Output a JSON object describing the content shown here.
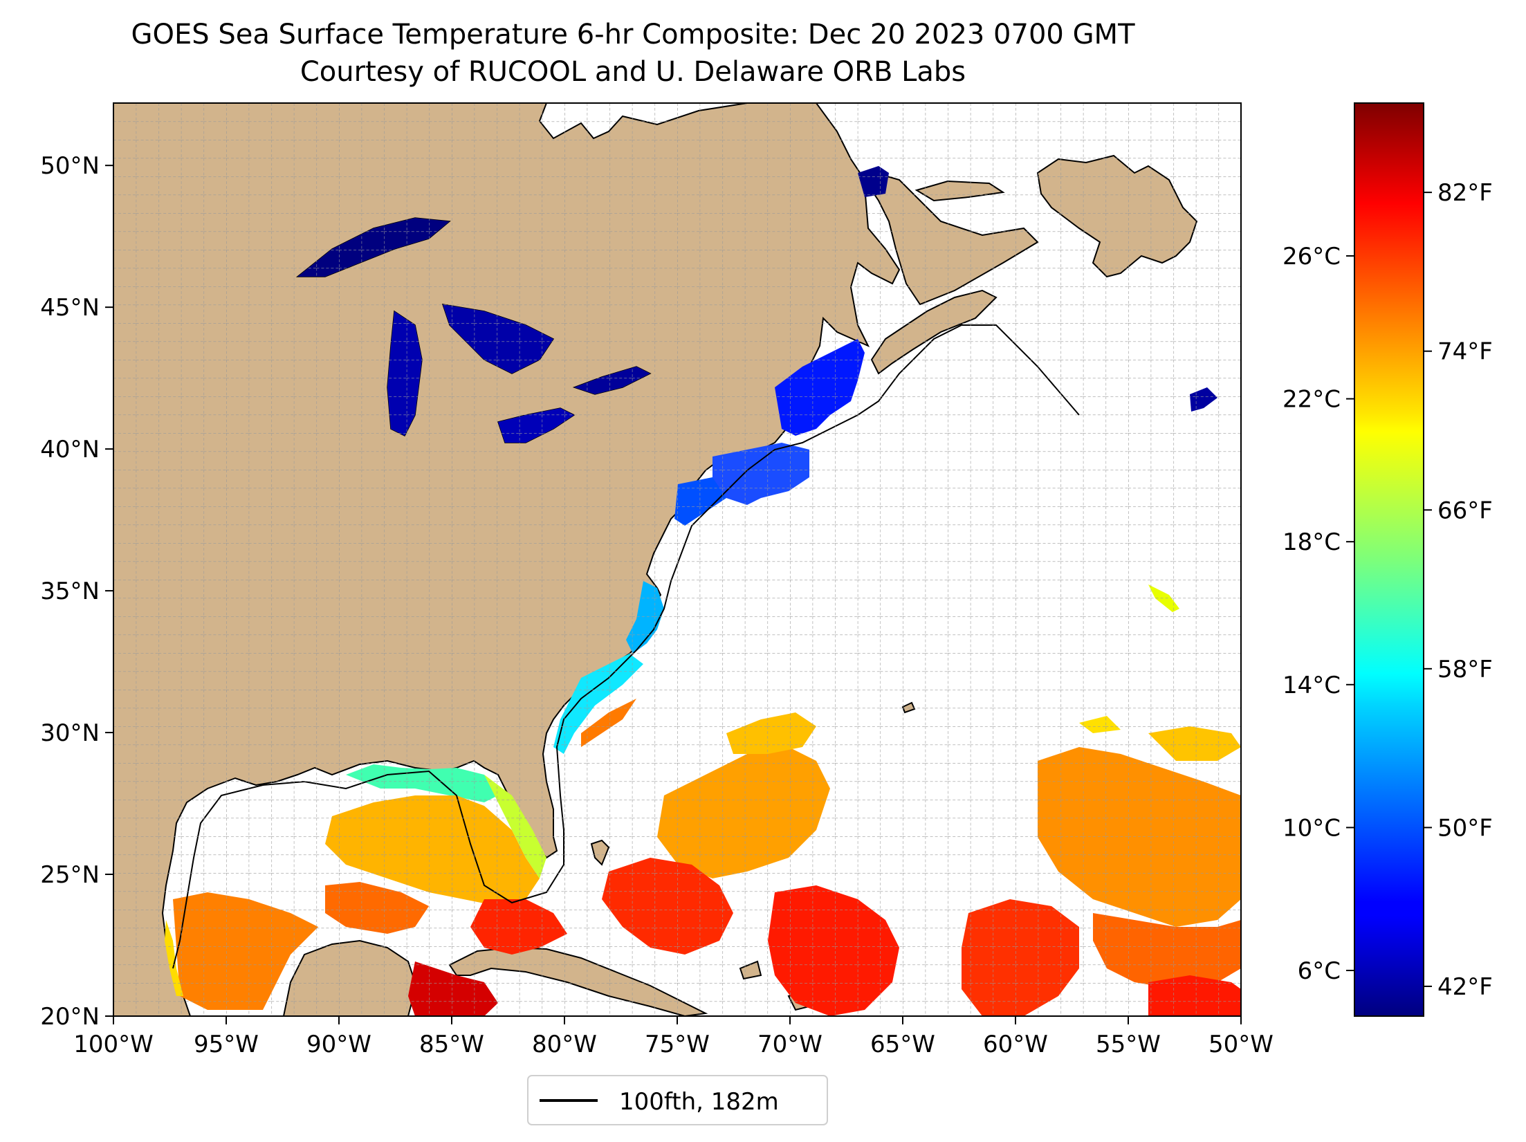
{
  "title_line1": "GOES Sea Surface Temperature 6-hr Composite: Dec 20 2023 0700 GMT",
  "title_line2": "Courtesy of RUCOOL and U. Delaware ORB Labs",
  "map": {
    "lon_ticks": [
      "100°W",
      "95°W",
      "90°W",
      "85°W",
      "80°W",
      "75°W",
      "70°W",
      "65°W",
      "60°W",
      "55°W",
      "50°W"
    ],
    "lat_ticks": [
      "20°N",
      "25°N",
      "30°N",
      "35°N",
      "40°N",
      "45°N",
      "50°N"
    ],
    "lon_range": [
      -100,
      -50
    ],
    "lat_range": [
      20,
      52.2
    ],
    "land_color": "#d2b48c",
    "ocean_color": "#ffffff",
    "legend_label": "100fth, 182m"
  },
  "colorbar": {
    "celsius_ticks": [
      "6°C",
      "10°C",
      "14°C",
      "18°C",
      "22°C",
      "26°C"
    ],
    "fahrenheit_ticks": [
      "42°F",
      "50°F",
      "58°F",
      "66°F",
      "74°F",
      "82°F"
    ],
    "range_f": [
      40.5,
      86.5
    ],
    "colormap": "jet"
  }
}
